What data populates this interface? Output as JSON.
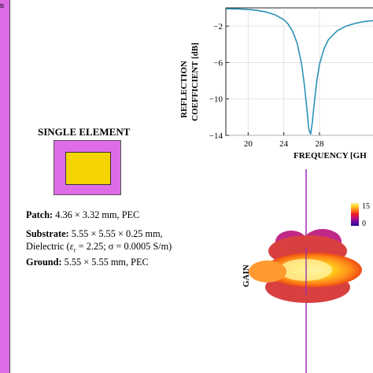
{
  "colors": {
    "magenta": "#dd6ce6",
    "patch_yellow": "#f4d400",
    "curve": "#2a93b4",
    "axis": "#222222",
    "pole": "#9b2bb0"
  },
  "left_strip": {
    "label": "n"
  },
  "single_element": {
    "title": "SINGLE ELEMENT",
    "patch_label": "Patch:",
    "patch_value": "4.36 × 3.32 mm, PEC",
    "substrate_label": "Substrate:",
    "substrate_value": "5.55 × 5.55 × 0.25 mm,",
    "dielectric_text": "Dielectric (",
    "eps": "ε",
    "eps_sub": "r",
    "dielectric_rest": " = 2.25; σ = 0.0005 S/m)",
    "ground_label": "Ground:",
    "ground_value": "5.55 × 5.55 mm, PEC"
  },
  "chart_data": [
    {
      "type": "line",
      "ylabel_line1": "REFLECTION",
      "ylabel_line2": "COEFFICIENT [dB]",
      "xlabel": "FREQUENCY [GH",
      "xlim": [
        17.5,
        34
      ],
      "ylim": [
        -14,
        0
      ],
      "xticks": [
        "20",
        "24",
        "28"
      ],
      "xtick_values": [
        20,
        24,
        28
      ],
      "yticks": [
        "−2",
        "−6",
        "−10",
        "−14"
      ],
      "ytick_values": [
        -2,
        -6,
        -10,
        -14
      ],
      "series": [
        {
          "x": [
            17.5,
            18,
            19,
            20,
            21,
            22,
            23,
            24,
            24.5,
            25,
            25.5,
            26,
            26.3,
            26.6,
            26.8,
            27.0,
            27.2,
            27.4,
            27.7,
            28,
            28.5,
            29,
            30,
            31,
            32,
            33,
            34
          ],
          "y": [
            -0.1,
            -0.1,
            -0.12,
            -0.18,
            -0.28,
            -0.45,
            -0.75,
            -1.3,
            -1.8,
            -2.6,
            -3.9,
            -6.2,
            -8.4,
            -11.2,
            -13.3,
            -13.9,
            -12.6,
            -10.6,
            -8.0,
            -6.2,
            -4.5,
            -3.5,
            -2.5,
            -2.0,
            -1.7,
            -1.5,
            -1.4
          ]
        }
      ]
    },
    {
      "type": "heatmap",
      "title": "GAIN",
      "colorbar_ticks": [
        "15",
        "0"
      ],
      "colorbar_range": [
        0,
        15
      ],
      "colorbar_colors": [
        "#fffae0",
        "#ffd21a",
        "#ff7a1a",
        "#e82020",
        "#c0107a",
        "#6a0aa8",
        "#2a0a8a"
      ]
    }
  ]
}
